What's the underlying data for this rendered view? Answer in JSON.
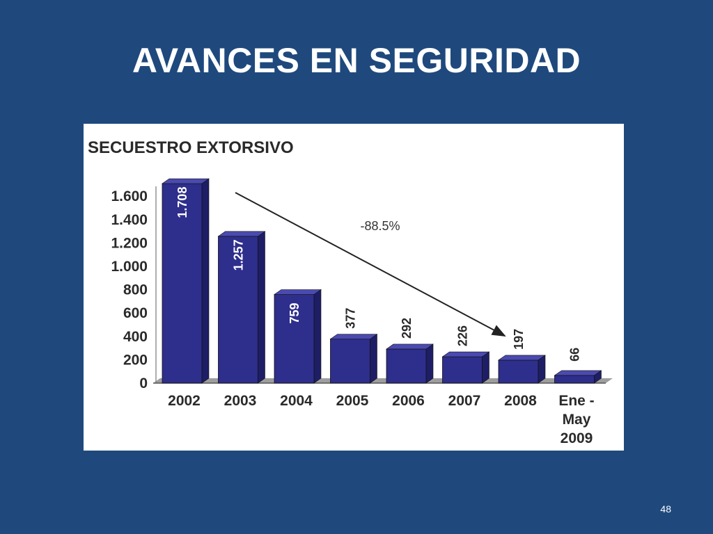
{
  "slide": {
    "title": "AVANCES EN SEGURIDAD",
    "page_number": "48",
    "background_color": "#1F497D"
  },
  "chart_data": {
    "type": "bar",
    "title": "SECUESTRO EXTORSIVO",
    "categories": [
      [
        "2002"
      ],
      [
        "2003"
      ],
      [
        "2004"
      ],
      [
        "2005"
      ],
      [
        "2006"
      ],
      [
        "2007"
      ],
      [
        "2008"
      ],
      [
        "Ene -",
        "May",
        "2009"
      ]
    ],
    "values": [
      1708,
      1257,
      759,
      377,
      292,
      226,
      197,
      66
    ],
    "value_labels": [
      "1.708",
      "1.257",
      "759",
      "377",
      "292",
      "226",
      "197",
      "66"
    ],
    "y_ticks": [
      0,
      200,
      400,
      600,
      800,
      1000,
      1200,
      1400,
      1600
    ],
    "y_tick_labels": [
      "0",
      "200",
      "400",
      "600",
      "800",
      "1.000",
      "1.200",
      "1.400",
      "1.600"
    ],
    "ylim": [
      0,
      1700
    ],
    "annotation": "-88.5%",
    "grid": false,
    "bar_color": "#2E2E8C",
    "bar_top_color": "#4A4AB0",
    "bar_side_color": "#1E1E66"
  }
}
